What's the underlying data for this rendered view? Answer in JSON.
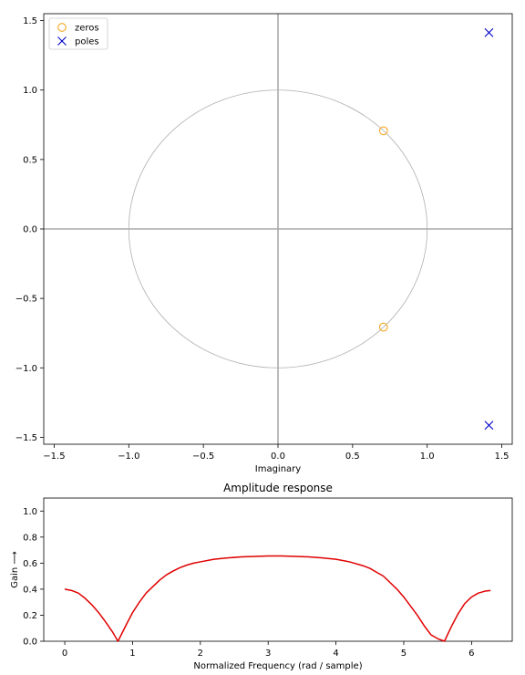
{
  "chart_data": [
    {
      "type": "scatter",
      "xlabel": "Imaginary",
      "ylabel": "",
      "xlim": [
        -1.57,
        1.57
      ],
      "ylim": [
        -1.55,
        1.55
      ],
      "xticks": [
        -1.5,
        -1.0,
        -0.5,
        0.0,
        0.5,
        1.0,
        1.5
      ],
      "xtick_labels": [
        "−1.5",
        "−1.0",
        "−0.5",
        "0.0",
        "0.5",
        "1.0",
        "1.5"
      ],
      "yticks": [
        -1.5,
        -1.0,
        -0.5,
        0.0,
        0.5,
        1.0,
        1.5
      ],
      "ytick_labels": [
        "−1.5",
        "−1.0",
        "−0.5",
        "0.0",
        "0.5",
        "1.0",
        "1.5"
      ],
      "unit_circle": true,
      "legend_position": "top-left",
      "series": [
        {
          "name": "zeros",
          "marker": "circle",
          "color": "#f5a623",
          "points": [
            [
              0.707,
              0.707
            ],
            [
              0.707,
              -0.707
            ]
          ]
        },
        {
          "name": "poles",
          "marker": "x",
          "color": "#0000cc",
          "points": [
            [
              1.414,
              1.414
            ],
            [
              1.414,
              -1.414
            ]
          ]
        }
      ]
    },
    {
      "type": "line",
      "title": "Amplitude response",
      "xlabel": "Normalized Frequency (rad / sample)",
      "ylabel": "Gain  ⟶",
      "xlim": [
        -0.31,
        6.6
      ],
      "ylim": [
        0,
        1.1
      ],
      "xticks": [
        0,
        1,
        2,
        3,
        4,
        5,
        6
      ],
      "xtick_labels": [
        "0",
        "1",
        "2",
        "3",
        "4",
        "5",
        "6"
      ],
      "yticks": [
        0.0,
        0.2,
        0.4,
        0.6,
        0.8,
        1.0
      ],
      "ytick_labels": [
        "0.0",
        "0.2",
        "0.4",
        "0.6",
        "0.8",
        "1.0"
      ],
      "color": "#e00000",
      "x": [
        0.0,
        0.1,
        0.2,
        0.3,
        0.4,
        0.5,
        0.6,
        0.7,
        0.785,
        0.9,
        1.0,
        1.1,
        1.2,
        1.3,
        1.4,
        1.5,
        1.6,
        1.7,
        1.8,
        1.9,
        2.0,
        2.2,
        2.4,
        2.6,
        2.8,
        3.0,
        3.2,
        3.4,
        3.6,
        3.8,
        4.0,
        4.2,
        4.4,
        4.5,
        4.6,
        4.7,
        4.8,
        4.9,
        5.0,
        5.1,
        5.2,
        5.3,
        5.4,
        5.5,
        5.6,
        5.7,
        5.8,
        5.9,
        6.0,
        6.1,
        6.2,
        6.28
      ],
      "y": [
        0.4,
        0.39,
        0.37,
        0.33,
        0.28,
        0.22,
        0.15,
        0.075,
        0.0,
        0.12,
        0.22,
        0.3,
        0.37,
        0.42,
        0.47,
        0.51,
        0.54,
        0.565,
        0.585,
        0.6,
        0.61,
        0.63,
        0.64,
        0.648,
        0.652,
        0.655,
        0.655,
        0.652,
        0.648,
        0.64,
        0.63,
        0.61,
        0.58,
        0.56,
        0.53,
        0.5,
        0.45,
        0.4,
        0.34,
        0.27,
        0.2,
        0.12,
        0.05,
        0.02,
        0.0,
        0.11,
        0.21,
        0.29,
        0.34,
        0.37,
        0.385,
        0.39
      ]
    }
  ]
}
